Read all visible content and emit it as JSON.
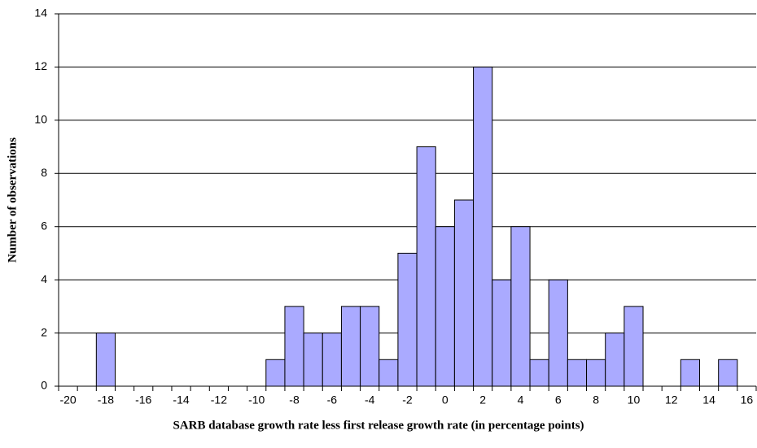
{
  "chart_data": {
    "type": "bar",
    "x_label": "SARB database growth rate less first release growth rate (in percentage points)",
    "y_label": "Number of observations",
    "categories": [
      -20,
      null,
      -18,
      null,
      -16,
      null,
      -14,
      null,
      -12,
      null,
      -10,
      null,
      -8,
      null,
      -6,
      null,
      -4,
      null,
      -2,
      null,
      0,
      null,
      2,
      null,
      4,
      null,
      6,
      null,
      8,
      null,
      10,
      null,
      12,
      null,
      14,
      null,
      16
    ],
    "values": [
      0,
      0,
      2,
      0,
      0,
      0,
      0,
      0,
      0,
      0,
      0,
      1,
      3,
      2,
      2,
      3,
      3,
      1,
      5,
      9,
      6,
      7,
      12,
      4,
      6,
      1,
      4,
      1,
      1,
      2,
      3,
      0,
      0,
      1,
      0,
      1,
      0
    ],
    "color": "#aaaaff",
    "ylim": [
      0,
      14
    ],
    "yticks": [
      0,
      2,
      4,
      6,
      8,
      10,
      12,
      14
    ],
    "grid": true
  }
}
